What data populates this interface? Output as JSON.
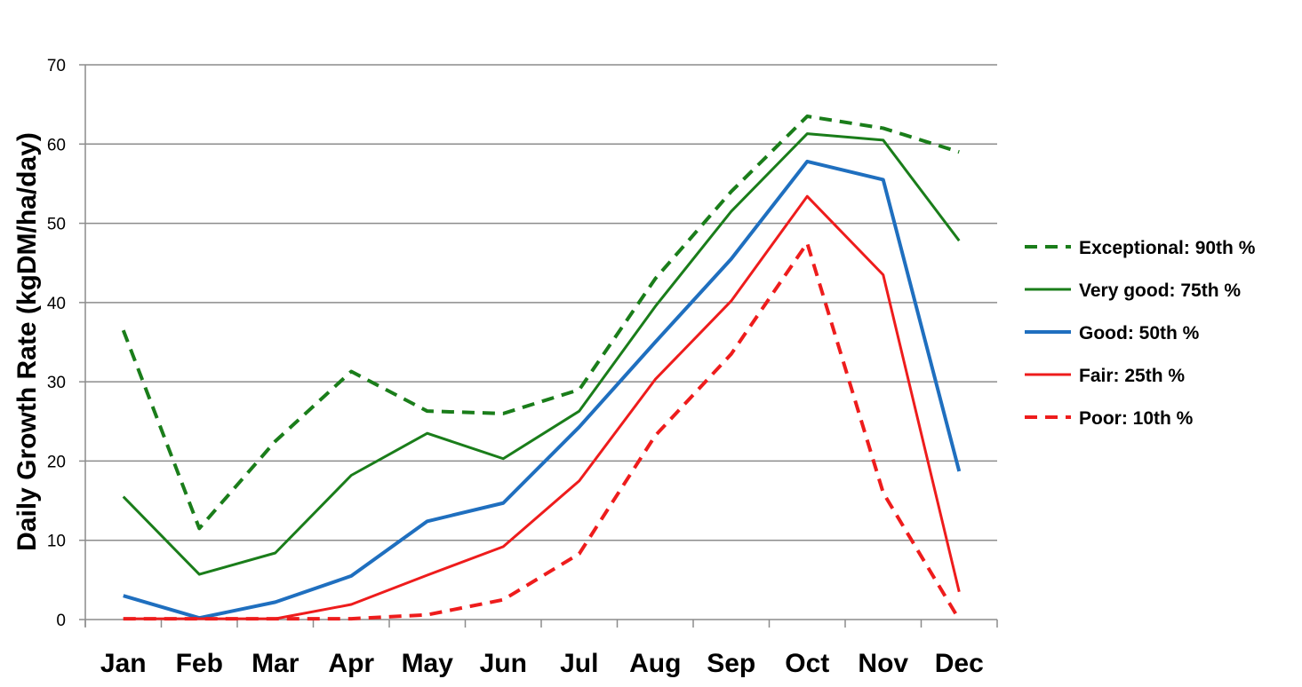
{
  "chart_data": {
    "type": "line",
    "title": "",
    "xlabel": "",
    "ylabel": "Daily Growth Rate  (kgDM/ha/day)",
    "ylim": [
      0,
      70
    ],
    "yticks": [
      0,
      10,
      20,
      30,
      40,
      50,
      60,
      70
    ],
    "grid": true,
    "legend_position": "right",
    "categories": [
      "Jan",
      "Feb",
      "Mar",
      "Apr",
      "May",
      "Jun",
      "Jul",
      "Aug",
      "Sep",
      "Oct",
      "Nov",
      "Dec"
    ],
    "series": [
      {
        "name": "Exceptional: 90th %",
        "color": "#1a7d1a",
        "dashed": true,
        "width": 4,
        "values": [
          36.5,
          11.5,
          22.5,
          31.3,
          26.3,
          26.0,
          29.0,
          43.0,
          54.0,
          63.5,
          62.0,
          59.0
        ]
      },
      {
        "name": "Very good: 75th %",
        "color": "#1a7d1a",
        "dashed": false,
        "width": 3,
        "values": [
          15.5,
          5.7,
          8.4,
          18.2,
          23.5,
          20.3,
          26.3,
          39.5,
          51.5,
          61.3,
          60.5,
          47.8
        ]
      },
      {
        "name": "Good: 50th %",
        "color": "#1f6fbf",
        "dashed": false,
        "width": 4,
        "values": [
          3.0,
          0.2,
          2.2,
          5.5,
          12.4,
          14.7,
          24.3,
          35.0,
          45.5,
          57.8,
          55.5,
          18.7
        ]
      },
      {
        "name": "Fair: 25th %",
        "color": "#ee1c1c",
        "dashed": false,
        "width": 3,
        "values": [
          0.1,
          0.1,
          0.1,
          1.9,
          5.6,
          9.2,
          17.5,
          30.3,
          40.2,
          53.4,
          43.5,
          3.5
        ]
      },
      {
        "name": "Poor: 10th %",
        "color": "#ee1c1c",
        "dashed": true,
        "width": 4,
        "values": [
          0.1,
          0.1,
          0.1,
          0.1,
          0.6,
          2.5,
          8.3,
          23.2,
          33.5,
          47.5,
          16.0,
          0.0
        ]
      }
    ]
  }
}
